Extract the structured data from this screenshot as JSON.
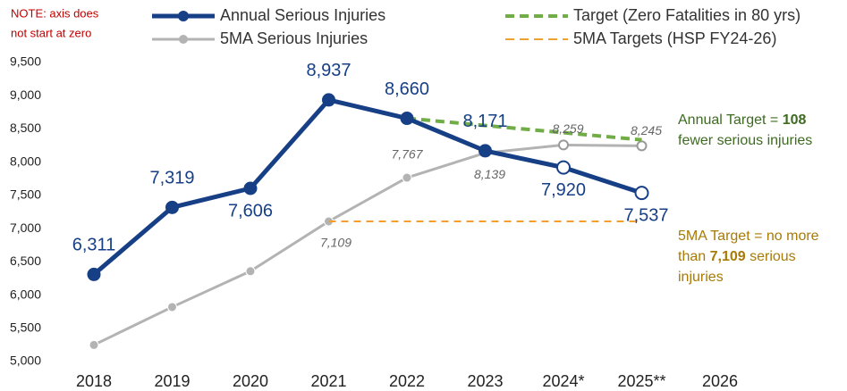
{
  "chart_data": {
    "type": "line",
    "note": [
      "NOTE: axis does",
      "not start at zero"
    ],
    "categories": [
      "2018",
      "2019",
      "2020",
      "2021",
      "2022",
      "2023",
      "2024*",
      "2025**",
      "2026"
    ],
    "ylim": [
      5000,
      9500
    ],
    "yticks": [
      {
        "value": 5000,
        "label": "5,000"
      },
      {
        "value": 5500,
        "label": "5,500"
      },
      {
        "value": 6000,
        "label": "6,000"
      },
      {
        "value": 6500,
        "label": "6,500"
      },
      {
        "value": 7000,
        "label": "7,000"
      },
      {
        "value": 7500,
        "label": "7,500"
      },
      {
        "value": 8000,
        "label": "8,000"
      },
      {
        "value": 8500,
        "label": "8,500"
      },
      {
        "value": 9000,
        "label": "9,000"
      },
      {
        "value": 9500,
        "label": "9,500"
      }
    ],
    "grid": false,
    "series": [
      {
        "name": "Annual Serious Injuries",
        "color": "#173f86",
        "width": 5,
        "dashed": false,
        "markers": true,
        "hollow_points": [
          6,
          7
        ],
        "values": [
          6311,
          7319,
          7606,
          8937,
          8660,
          8171,
          7920,
          7537,
          null
        ],
        "value_labels": [
          "6,311",
          "7,319",
          "7,606",
          "8,937",
          "8,660",
          "8,171",
          "7,920",
          "7,537",
          null
        ]
      },
      {
        "name": "5MA Serious Injuries",
        "color": "#b3b3b3",
        "width": 3,
        "dashed": false,
        "markers": true,
        "hollow_points": [
          6,
          7
        ],
        "values": [
          5250,
          5820,
          6360,
          7109,
          7767,
          8139,
          8259,
          8245,
          null
        ],
        "value_labels": [
          null,
          null,
          null,
          "7,109",
          "7,767",
          "8,139",
          "8,259",
          "8,245",
          null
        ]
      },
      {
        "name": "Target (Zero Fatalities in 80 yrs)",
        "color": "#70ad47",
        "width": 4,
        "dashed": true,
        "markers": false,
        "values": [
          null,
          null,
          null,
          null,
          8660,
          8552,
          8444,
          8336,
          null
        ]
      },
      {
        "name": "5MA Targets (HSP FY24-26)",
        "color": "#f0a030",
        "width": 2,
        "dashed": true,
        "markers": false,
        "values": [
          null,
          null,
          null,
          7109,
          7109,
          7109,
          7109,
          7109,
          null
        ]
      }
    ],
    "annotations": [
      {
        "color": "#3d6b21",
        "lines": [
          [
            "Annual Target = ",
            "108"
          ],
          [
            "fewer serious injuries"
          ]
        ]
      },
      {
        "color": "#a87a06",
        "lines": [
          [
            "5MA Target = no more"
          ],
          [
            "than ",
            "7,109",
            "  serious"
          ],
          [
            "injuries"
          ]
        ]
      }
    ]
  }
}
